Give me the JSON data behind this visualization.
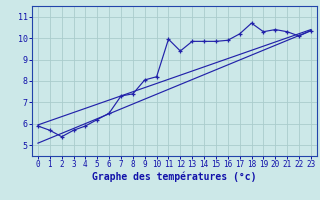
{
  "title": "",
  "xlabel": "Graphe des températures (°c)",
  "ylabel": "",
  "background_color": "#cce8e8",
  "grid_color": "#aacccc",
  "line_color": "#2222aa",
  "spine_color": "#2244aa",
  "xlabel_color": "#1111aa",
  "tick_color": "#1111aa",
  "x_ticks": [
    0,
    1,
    2,
    3,
    4,
    5,
    6,
    7,
    8,
    9,
    10,
    11,
    12,
    13,
    14,
    15,
    16,
    17,
    18,
    19,
    20,
    21,
    22,
    23
  ],
  "y_ticks": [
    5,
    6,
    7,
    8,
    9,
    10,
    11
  ],
  "xlim": [
    -0.5,
    23.5
  ],
  "ylim": [
    4.5,
    11.5
  ],
  "data_line": [
    5.9,
    5.7,
    5.4,
    5.7,
    5.9,
    6.2,
    6.5,
    7.3,
    7.4,
    8.05,
    8.2,
    9.95,
    9.4,
    9.85,
    9.85,
    9.85,
    9.9,
    10.2,
    10.7,
    10.3,
    10.4,
    10.3,
    10.1,
    10.35
  ],
  "linear1_start_x": 0,
  "linear1_start_y": 5.95,
  "linear1_end_x": 23,
  "linear1_end_y": 10.4,
  "linear2_start_x": 0,
  "linear2_start_y": 5.1,
  "linear2_end_x": 23,
  "linear2_end_y": 10.35,
  "tick_fontsize": 5.5,
  "xlabel_fontsize": 7.0,
  "xlabel_bold": true
}
